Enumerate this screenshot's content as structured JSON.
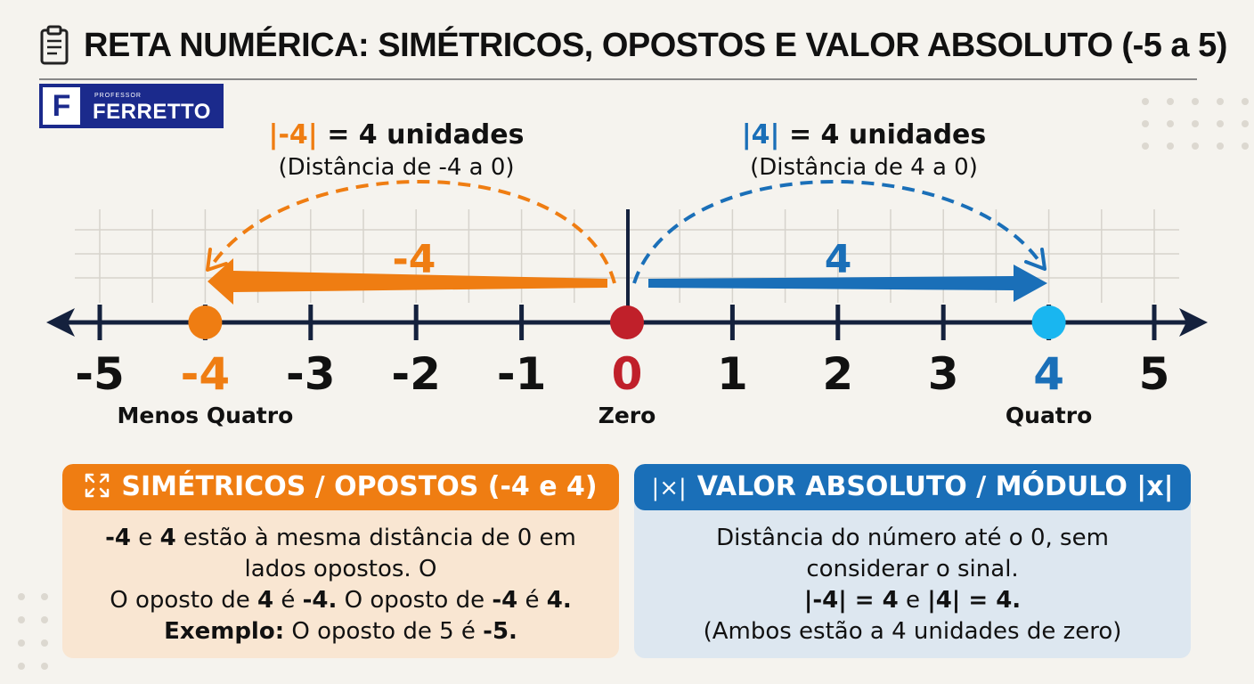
{
  "title": "RETA NUMÉRICA: SIMÉTRICOS, OPOSTOS E VALOR ABSOLUTO (-5 a 5)",
  "logo": {
    "letter": "F",
    "small": "PROFESSOR",
    "name": "FERRETTO"
  },
  "left_caption": {
    "abs": "|-4|",
    "rest": " = 4 unidades",
    "sub": "(Distância de -4 a 0)"
  },
  "right_caption": {
    "abs": "|4|",
    "rest": " = 4 unidades",
    "sub": "(Distância de 4 a 0)"
  },
  "arrow_labels": {
    "negative": "-4",
    "positive": "4"
  },
  "number_line": {
    "min": -5,
    "max": 5,
    "ticks": [
      "-5",
      "-4",
      "-3",
      "-2",
      "-1",
      "0",
      "1",
      "2",
      "3",
      "4",
      "5"
    ],
    "highlight_colors": {
      "-4": "#ef7d12",
      "0": "#c0202a",
      "4": "#1a6fb8"
    },
    "points": [
      {
        "value": -4,
        "name": "Menos Quatro",
        "color": "#ef7d12"
      },
      {
        "value": 0,
        "name": "Zero",
        "color": "#c0202a"
      },
      {
        "value": 4,
        "name": "Quatro",
        "color": "#19b6f0"
      }
    ]
  },
  "colors": {
    "orange": "#ef7d12",
    "blue": "#1a6fb8",
    "red": "#c0202a",
    "cyan": "#19b6f0",
    "navy": "#14213d"
  },
  "card_left": {
    "header": "SIMÉTRICOS / OPOSTOS (-4 e 4)",
    "icon": "expand-arrows-icon",
    "line1": {
      "a": "-4",
      "b": " e ",
      "c": "4",
      "d": " estão à mesma distância de 0 em"
    },
    "line2": "lados opostos. O",
    "line3": {
      "a": "O oposto de ",
      "b": "4",
      "c": " é ",
      "d": "-4.",
      "e": " O oposto de ",
      "f": "-4",
      "g": " é ",
      "h": "4."
    },
    "line4": {
      "a": "Exemplo:",
      "b": " O oposto de 5 é ",
      "c": "-5."
    }
  },
  "card_right": {
    "header": "VALOR ABSOLUTO / MÓDULO |x|",
    "icon_text": "|×|",
    "line1": "Distância do número até o 0, sem",
    "line2": "considerar o sinal.",
    "line3": {
      "a": "|-4| = 4",
      "b": " e ",
      "c": "|4| = 4."
    },
    "line4": "(Ambos estão a 4 unidades de zero)"
  }
}
